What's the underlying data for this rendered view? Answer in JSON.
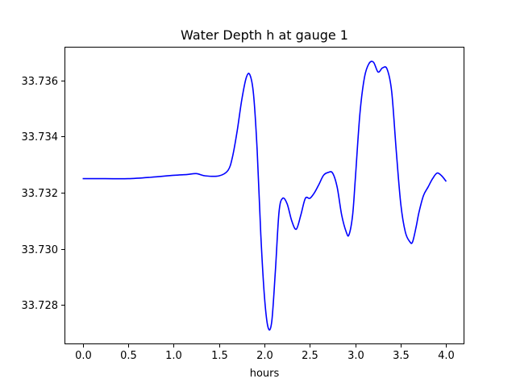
{
  "chart_data": {
    "type": "line",
    "title": "Water Depth h at gauge 1",
    "xlabel": "hours",
    "ylabel": "",
    "xlim": [
      -0.2,
      4.2
    ],
    "ylim": [
      33.7266,
      33.7372
    ],
    "xticks": [
      0.0,
      0.5,
      1.0,
      1.5,
      2.0,
      2.5,
      3.0,
      3.5,
      4.0
    ],
    "xtick_labels": [
      "0.0",
      "0.5",
      "1.0",
      "1.5",
      "2.0",
      "2.5",
      "3.0",
      "3.5",
      "4.0"
    ],
    "yticks": [
      33.728,
      33.73,
      33.732,
      33.734,
      33.736
    ],
    "ytick_labels": [
      "33.728",
      "33.730",
      "33.732",
      "33.734",
      "33.736"
    ],
    "grid": false,
    "colors": {
      "line": "#0000ff",
      "axes": "#000000",
      "background": "#ffffff"
    },
    "series": [
      {
        "x": [
          0.0,
          0.25,
          0.5,
          0.75,
          1.0,
          1.15,
          1.25,
          1.35,
          1.5,
          1.6,
          1.65,
          1.7,
          1.75,
          1.8,
          1.84,
          1.88,
          1.92,
          1.96,
          2.0,
          2.04,
          2.08,
          2.12,
          2.16,
          2.2,
          2.25,
          2.3,
          2.35,
          2.4,
          2.45,
          2.5,
          2.55,
          2.6,
          2.65,
          2.7,
          2.75,
          2.8,
          2.85,
          2.9,
          2.93,
          2.97,
          3.0,
          3.05,
          3.1,
          3.15,
          3.2,
          3.25,
          3.3,
          3.35,
          3.4,
          3.45,
          3.5,
          3.55,
          3.6,
          3.63,
          3.67,
          3.7,
          3.75,
          3.8,
          3.85,
          3.9,
          3.95,
          4.0
        ],
        "y": [
          33.7325,
          33.7325,
          33.7325,
          33.73255,
          33.73262,
          33.73265,
          33.73268,
          33.7326,
          33.7326,
          33.7328,
          33.7333,
          33.7342,
          33.7353,
          33.7361,
          33.7362,
          33.7355,
          33.7335,
          33.7305,
          33.7283,
          33.7272,
          33.7274,
          33.7292,
          33.7313,
          33.7318,
          33.7316,
          33.731,
          33.7307,
          33.7312,
          33.7318,
          33.7318,
          33.732,
          33.7323,
          33.73262,
          33.73272,
          33.7327,
          33.7322,
          33.7312,
          33.7306,
          33.7305,
          33.7312,
          33.7325,
          33.7348,
          33.7361,
          33.7366,
          33.73665,
          33.7363,
          33.73645,
          33.7364,
          33.7356,
          33.7335,
          33.7316,
          33.7306,
          33.73025,
          33.73025,
          33.7308,
          33.7313,
          33.7319,
          33.7322,
          33.7325,
          33.7327,
          33.7326,
          33.7324
        ]
      }
    ]
  }
}
